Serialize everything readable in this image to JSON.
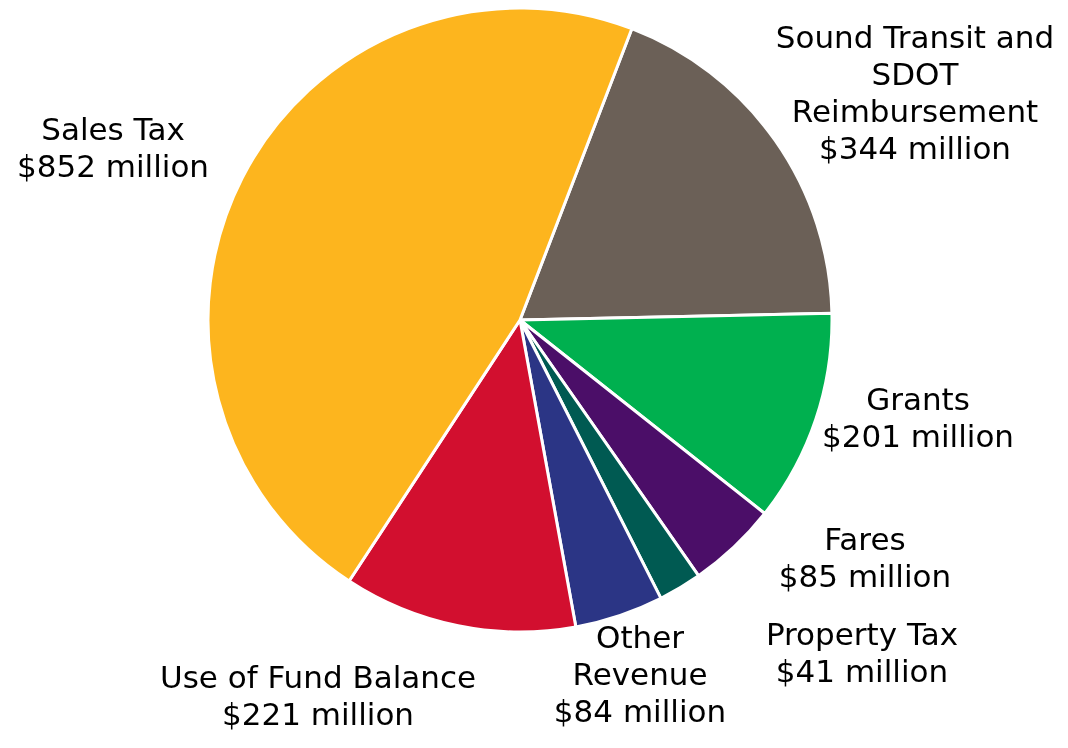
{
  "chart_data": {
    "type": "pie",
    "categories": [
      "Sound Transit and\nSDOT\nReimbursement",
      "Grants",
      "Fares",
      "Property Tax",
      "Other\nRevenue",
      "Use of Fund Balance",
      "Sales Tax"
    ],
    "values": [
      344,
      201,
      85,
      41,
      84,
      221,
      852
    ],
    "value_labels": [
      "$344 million",
      "$201 million",
      "$85 million",
      "$41 million",
      "$84 million",
      "$221 million",
      "$852 million"
    ],
    "colors": [
      "#6b6057",
      "#00b04f",
      "#4b0e68",
      "#005a52",
      "#2b3585",
      "#d20f2f",
      "#fdb51e"
    ],
    "legend": false
  }
}
